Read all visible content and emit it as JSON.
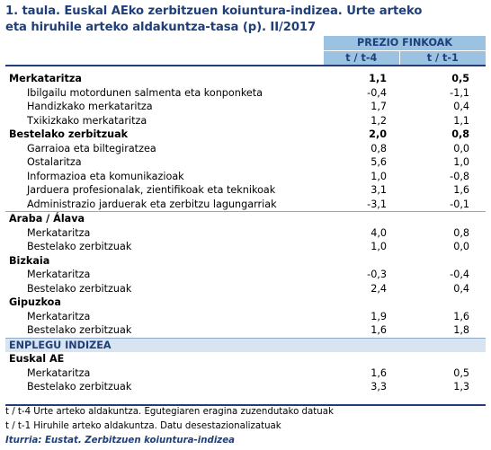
{
  "title_line1": "1. taula. Euskal AEko zerbitzuen koiuntura-indizea. Urte arteko",
  "title_line2": "eta hiruhile arteko aldakuntza-tasa (p). II/2017",
  "header": {
    "group": "PREZIO FINKOAK",
    "col1": "t / t-4",
    "col2": "t / t-1"
  },
  "rows": [
    {
      "label": "Merkataritza",
      "v1": "1,1",
      "v2": "0,5"
    },
    {
      "label": "Ibilgailu motordunen salmenta eta konponketa",
      "v1": "-0,4",
      "v2": "-1,1"
    },
    {
      "label": "Handizkako merkataritza",
      "v1": "1,7",
      "v2": "0,4"
    },
    {
      "label": "Txikizkako merkataritza",
      "v1": "1,2",
      "v2": "1,1"
    },
    {
      "label": "Bestelako zerbitzuak",
      "v1": "2,0",
      "v2": "0,8"
    },
    {
      "label": "Garraioa eta biltegiratzea",
      "v1": "0,8",
      "v2": "0,0"
    },
    {
      "label": "Ostalaritza",
      "v1": "5,6",
      "v2": "1,0"
    },
    {
      "label": "Informazioa eta komunikazioak",
      "v1": "1,0",
      "v2": "-0,8"
    },
    {
      "label": "Jarduera profesionalak, zientifikoak eta teknikoak",
      "v1": "3,1",
      "v2": "1,6"
    },
    {
      "label": "Administrazio jarduerak eta zerbitzu lagungarriak",
      "v1": "-3,1",
      "v2": "-0,1"
    },
    {
      "label": "Araba / Álava"
    },
    {
      "label": "Merkataritza",
      "v1": "4,0",
      "v2": "0,8"
    },
    {
      "label": "Bestelako zerbitzuak",
      "v1": "1,0",
      "v2": "0,0"
    },
    {
      "label": "Bizkaia"
    },
    {
      "label": "Merkataritza",
      "v1": "-0,3",
      "v2": "-0,4"
    },
    {
      "label": "Bestelako zerbitzuak",
      "v1": "2,4",
      "v2": "0,4"
    },
    {
      "label": "Gipuzkoa"
    },
    {
      "label": "Merkataritza",
      "v1": "1,9",
      "v2": "1,6"
    },
    {
      "label": "Bestelako zerbitzuak",
      "v1": "1,6",
      "v2": "1,8"
    },
    {
      "label": "ENPLEGU INDIZEA"
    },
    {
      "label": "Euskal AE"
    },
    {
      "label": "Merkataritza",
      "v1": "1,6",
      "v2": "0,5"
    },
    {
      "label": "Bestelako zerbitzuak",
      "v1": "3,3",
      "v2": "1,3"
    }
  ],
  "notes": {
    "note1": "t / t-4 Urte arteko aldakuntza. Egutegiaren eragina zuzendutako datuak",
    "note2": "t / t-1 Hiruhile arteko aldakuntza. Datu desestazionalizatuak",
    "source": "Iturria: Eustat. Zerbitzuen koiuntura-indizea"
  }
}
